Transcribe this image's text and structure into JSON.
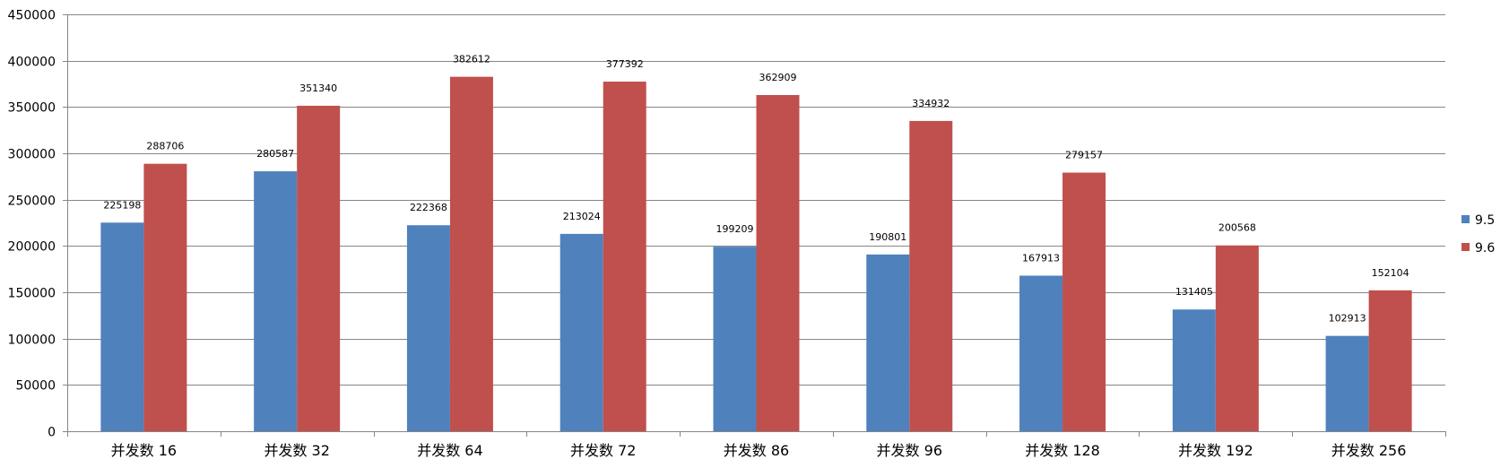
{
  "chart_data": {
    "type": "bar",
    "title": "",
    "xlabel": "",
    "ylabel": "",
    "categories": [
      "并发数 16",
      "并发数 32",
      "并发数 64",
      "并发数 72",
      "并发数 86",
      "并发数 96",
      "并发数 128",
      "并发数 192",
      "并发数 256"
    ],
    "series": [
      {
        "name": "9.5",
        "color": "#4F81BD",
        "values": [
          225198,
          280587,
          222368,
          213024,
          199209,
          190801,
          167913,
          131405,
          102913
        ]
      },
      {
        "name": "9.6",
        "color": "#C0504D",
        "values": [
          288706,
          351340,
          382612,
          377392,
          362909,
          334932,
          279157,
          200568,
          152104
        ]
      }
    ],
    "ylim": [
      0,
      450000
    ],
    "yticks": [
      0,
      50000,
      100000,
      150000,
      200000,
      250000,
      300000,
      350000,
      400000,
      450000
    ],
    "grid": true,
    "legend_position": "right",
    "data_labels": true
  }
}
